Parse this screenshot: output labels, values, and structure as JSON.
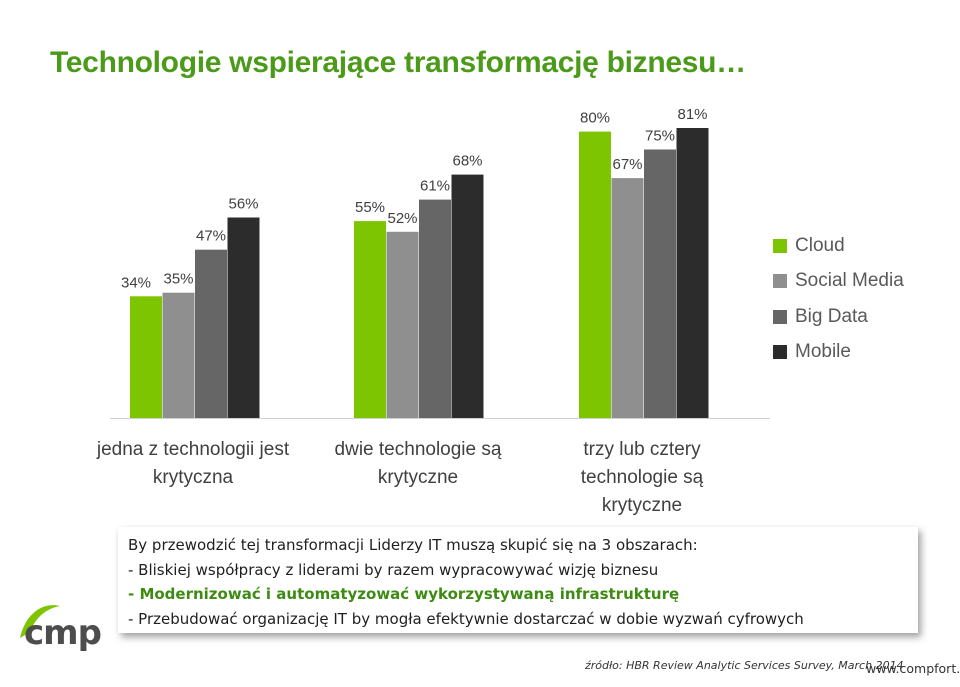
{
  "title": "Technologie wspierające transformację biznesu…",
  "chart_data": {
    "type": "bar",
    "categories": [
      [
        "jedna z technologii jest",
        "krytyczna"
      ],
      [
        "dwie technologie są",
        "krytyczne"
      ],
      [
        "trzy lub cztery",
        "technologie są",
        "krytyczne"
      ]
    ],
    "series": [
      {
        "name": "Cloud",
        "color": "#7dc500",
        "values": [
          34,
          55,
          80
        ]
      },
      {
        "name": "Social Media",
        "color": "#8f8f8f",
        "values": [
          35,
          52,
          67
        ]
      },
      {
        "name": "Big Data",
        "color": "#666666",
        "values": [
          47,
          61,
          75
        ]
      },
      {
        "name": "Mobile",
        "color": "#2c2c2c",
        "values": [
          56,
          68,
          81
        ]
      }
    ],
    "data_labels": [
      [
        "34%",
        "35%",
        "47%",
        "56%"
      ],
      [
        "55%",
        "52%",
        "61%",
        "68%"
      ],
      [
        "80%",
        "67%",
        "75%",
        "81%"
      ]
    ],
    "ylim": [
      0,
      100
    ],
    "grid": false,
    "legend_position": "right"
  },
  "info": {
    "intro": "By przewodzić tej transformacji Liderzy IT muszą skupić się na 3 obszarach:",
    "items": [
      "- Bliskiej współpracy z liderami by razem wypracowywać wizję biznesu",
      "- Modernizować i automatyzować wykorzystywaną infrastrukturę",
      "- Przebudować organizację IT by mogła efektywnie dostarczać w dobie wyzwań cyfrowych"
    ]
  },
  "logo": {
    "text": "cmp",
    "accent_color": "#7dc500"
  },
  "source": "źródło: HBR Review Analytic Services Survey, March 2014",
  "website": "www.compfort.pl"
}
